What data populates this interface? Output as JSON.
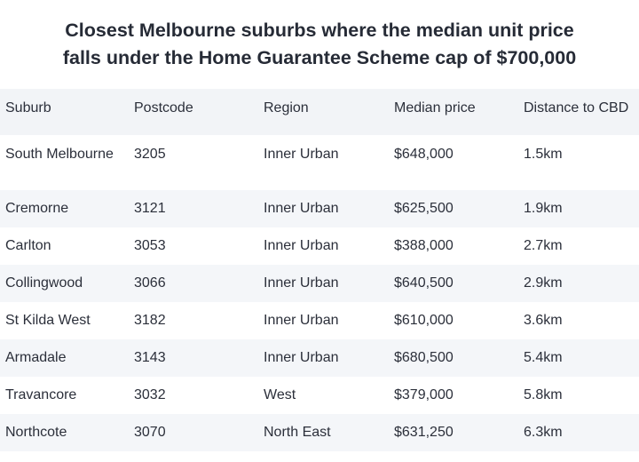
{
  "title": {
    "line1": "Closest Melbourne suburbs where the median unit price",
    "line2": "falls under the Home Guarantee Scheme cap of $700,000"
  },
  "table": {
    "headers": [
      "Suburb",
      "Postcode",
      "Region",
      "Median price",
      "Distance to CBD"
    ],
    "rows": [
      [
        "South Melbourne",
        "3205",
        "Inner Urban",
        "$648,000",
        "1.5km"
      ],
      [
        "Cremorne",
        "3121",
        "Inner Urban",
        "$625,500",
        "1.9km"
      ],
      [
        "Carlton",
        "3053",
        "Inner Urban",
        "$388,000",
        "2.7km"
      ],
      [
        "Collingwood",
        "3066",
        "Inner Urban",
        "$640,500",
        "2.9km"
      ],
      [
        "St Kilda West",
        "3182",
        "Inner Urban",
        "$610,000",
        "3.6km"
      ],
      [
        "Armadale",
        "3143",
        "Inner Urban",
        "$680,500",
        "5.4km"
      ],
      [
        "Travancore",
        "3032",
        "West",
        "$379,000",
        "5.8km"
      ],
      [
        "Northcote",
        "3070",
        "North East",
        "$631,250",
        "6.3km"
      ]
    ]
  }
}
